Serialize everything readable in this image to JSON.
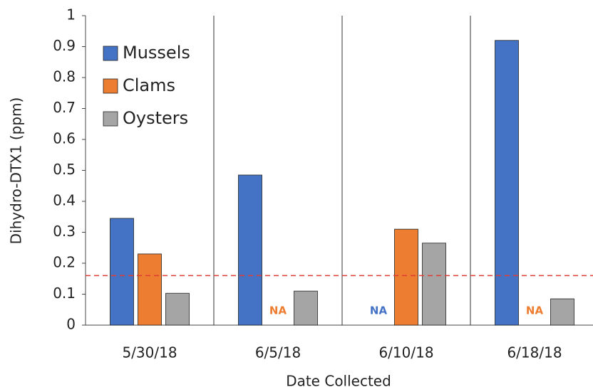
{
  "chart_data": {
    "type": "bar",
    "categories": [
      "5/30/18",
      "6/5/18",
      "6/10/18",
      "6/18/18"
    ],
    "series": [
      {
        "name": "Mussels",
        "color": "#4472c4",
        "values": [
          0.345,
          0.485,
          null,
          0.92
        ],
        "value_labels": [
          null,
          null,
          "NA",
          null
        ]
      },
      {
        "name": "Clams",
        "color": "#ed7d31",
        "values": [
          0.23,
          null,
          0.31,
          null
        ],
        "value_labels": [
          null,
          "NA",
          null,
          "NA"
        ]
      },
      {
        "name": "Oysters",
        "color": "#a5a5a5",
        "values": [
          0.103,
          0.11,
          0.265,
          0.085
        ]
      }
    ],
    "x_label": "Date Collected",
    "y_label": "Dihydro-DTX1 (ppm)",
    "ylim": [
      0,
      1
    ],
    "yticks": [
      0,
      0.1,
      0.2,
      0.3,
      0.4,
      0.5,
      0.6,
      0.7,
      0.8,
      0.9,
      1
    ],
    "reference_line": {
      "value": 0.16,
      "color": "#e03c31",
      "style": "dashed"
    },
    "grid": false,
    "legend": "top-left"
  }
}
